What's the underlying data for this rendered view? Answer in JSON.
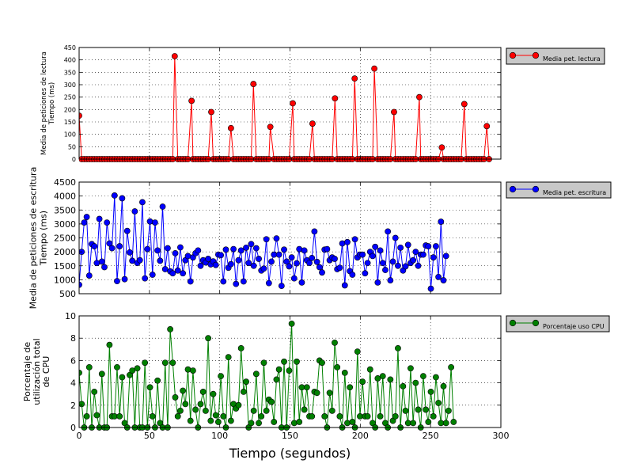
{
  "chart_data": [
    {
      "type": "line",
      "ylabel": "Media de peticiones de lectura\nTiempo (ms)",
      "ylim": [
        0,
        450
      ],
      "yticks": [
        0,
        50,
        100,
        150,
        200,
        250,
        300,
        350,
        400,
        450
      ],
      "xlim": [
        0,
        300
      ],
      "xticks": [
        0,
        50,
        100,
        150,
        200,
        250,
        300
      ],
      "grid": true,
      "legend_position": "right-outside",
      "series": [
        {
          "name": "Media pet. lectura",
          "color": "#ff0000",
          "marker": "circle",
          "spikes": [
            [
              0,
              175
            ],
            [
              68,
              415
            ],
            [
              80,
              235
            ],
            [
              94,
              190
            ],
            [
              108,
              125
            ],
            [
              124,
              303
            ],
            [
              136,
              130
            ],
            [
              152,
              225
            ],
            [
              166,
              143
            ],
            [
              182,
              245
            ],
            [
              196,
              325
            ],
            [
              210,
              365
            ],
            [
              224,
              190
            ],
            [
              242,
              250
            ],
            [
              258,
              47
            ],
            [
              274,
              222
            ],
            [
              290,
              133
            ]
          ],
          "baseline": 0,
          "x_end": 292,
          "x_step": 1.8
        }
      ]
    },
    {
      "type": "line",
      "ylabel": "Media de peticiones de escritura\nTiempo (ms)",
      "ylim": [
        500,
        4500
      ],
      "yticks": [
        500,
        1000,
        1500,
        2000,
        2500,
        3000,
        3500,
        4000,
        4500
      ],
      "xlim": [
        0,
        300
      ],
      "xticks": [
        0,
        50,
        100,
        150,
        200,
        250,
        300
      ],
      "grid": true,
      "legend_position": "right-outside",
      "series": [
        {
          "name": "Media pet. escritura",
          "color": "#0000ff",
          "marker": "circle",
          "x_start": 0,
          "x_step": 1.8,
          "values": [
            820,
            2000,
            3050,
            3250,
            1150,
            2280,
            2200,
            1600,
            3180,
            1650,
            1450,
            3050,
            2300,
            2130,
            4020,
            950,
            2200,
            3920,
            1020,
            2750,
            1980,
            1680,
            3450,
            1600,
            1700,
            3780,
            1050,
            2100,
            3090,
            1180,
            3050,
            2050,
            1680,
            3620,
            1380,
            2130,
            1300,
            1230,
            1950,
            1330,
            2160,
            1230,
            1700,
            1850,
            940,
            1800,
            1950,
            2050,
            1500,
            1700,
            1620,
            1750,
            1550,
            1660,
            1530,
            1900,
            1880,
            940,
            2080,
            1430,
            1560,
            2100,
            850,
            1700,
            2050,
            940,
            2150,
            1600,
            2280,
            1500,
            2130,
            1750,
            1330,
            1400,
            2450,
            880,
            1650,
            1900,
            2480,
            1900,
            780,
            2080,
            1650,
            1480,
            1800,
            1050,
            1590,
            2100,
            900,
            2050,
            1700,
            1600,
            1780,
            2730,
            1640,
            1450,
            1260,
            2080,
            2100,
            1700,
            1800,
            1750,
            1380,
            1430,
            2300,
            800,
            2350,
            1310,
            1180,
            2450,
            1800,
            1900,
            1900,
            1230,
            1600,
            2000,
            1850,
            2180,
            900,
            2050,
            1600,
            1350,
            2730,
            980,
            1650,
            2500,
            1500,
            2150,
            1330,
            1480,
            2250,
            1600,
            1700,
            2000,
            1500,
            1900,
            1900,
            2230,
            2200,
            680,
            1800,
            2200,
            1100,
            3080,
            980,
            1850
          ]
        }
      ]
    },
    {
      "type": "line",
      "ylabel": "Porcentaje de\nutilización total\nde CPU",
      "xlabel": "Tiempo (segundos)",
      "ylim": [
        0,
        10
      ],
      "yticks": [
        0,
        2,
        4,
        6,
        8,
        10
      ],
      "xlim": [
        0,
        300
      ],
      "xticks": [
        0,
        50,
        100,
        150,
        200,
        250,
        300
      ],
      "grid": true,
      "legend_position": "right-outside",
      "series": [
        {
          "name": "Porcentaje uso CPU",
          "color": "#008000",
          "marker": "circle",
          "x_start": 0,
          "x_step": 1.8,
          "values": [
            4.9,
            2.1,
            0,
            1.0,
            5.4,
            0,
            3.2,
            1.1,
            0,
            4.8,
            0,
            0,
            7.4,
            1.0,
            1.0,
            5.4,
            1.0,
            4.5,
            0.4,
            0,
            4.7,
            5.1,
            0,
            5.3,
            0,
            0,
            5.8,
            0,
            3.6,
            1.0,
            0,
            4.2,
            0.4,
            0,
            5.8,
            0,
            8.8,
            5.8,
            2.7,
            1.0,
            1.5,
            3.3,
            2.1,
            5.2,
            0.6,
            5.1,
            1.6,
            0,
            2.1,
            3.2,
            1.5,
            8.0,
            0.6,
            3.0,
            1.1,
            0.5,
            4.6,
            1.0,
            0,
            6.3,
            0.6,
            2.1,
            1.7,
            2.0,
            7.1,
            3.2,
            4.1,
            0,
            0.4,
            1.5,
            4.8,
            0.4,
            1.0,
            5.8,
            1.5,
            2.5,
            2.3,
            0.5,
            4.3,
            5.2,
            0,
            5.9,
            0,
            5.1,
            9.3,
            0.4,
            5.9,
            0.5,
            3.6,
            1.6,
            3.6,
            1.0,
            1.0,
            3.2,
            3.1,
            6.0,
            5.8,
            1.0,
            0,
            3.1,
            1.5,
            7.6,
            5.4,
            1.0,
            0,
            4.9,
            0.4,
            3.6,
            0.5,
            0,
            6.8,
            1.0,
            4.1,
            1.0,
            1.0,
            5.2,
            0.4,
            0,
            4.4,
            1.0,
            4.6,
            0.4,
            0,
            4.3,
            0.6,
            1.0,
            7.1,
            0,
            3.7,
            1.5,
            0.4,
            5.3,
            0.4,
            4.0,
            1.6,
            0,
            4.6,
            1.6,
            0.5,
            3.2,
            1.0,
            4.5,
            2.2,
            0.4,
            3.7,
            0.4,
            1.5,
            5.4,
            0.5
          ]
        }
      ]
    }
  ]
}
